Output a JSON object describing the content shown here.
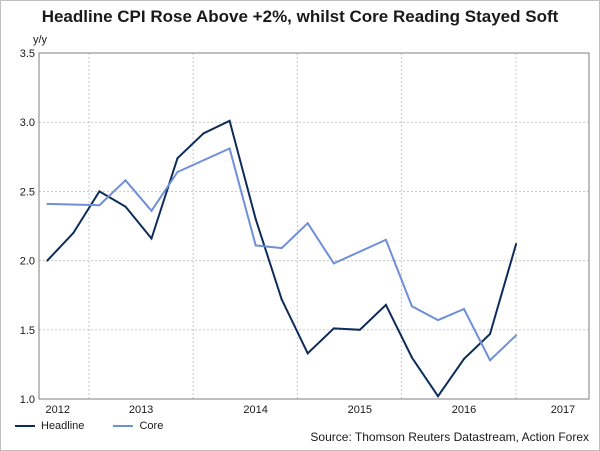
{
  "chart_data": {
    "type": "line",
    "title": "Headline CPI Rose Above +2%, whilst Core Reading Stayed Soft",
    "ylabel": "y/y",
    "xlabel": "",
    "ylim": [
      1.0,
      3.5
    ],
    "yticks": [
      1.0,
      1.5,
      2.0,
      2.5,
      3.0,
      3.5
    ],
    "ytick_labels": [
      "1.0",
      "1.5",
      "2.0",
      "2.5",
      "3.0",
      "3.5"
    ],
    "xlim": [
      2011.92,
      2017.2
    ],
    "xticks": [
      {
        "label": "2012",
        "pos": 2012.1
      },
      {
        "label": "2013",
        "pos": 2012.9
      },
      {
        "label": "2014",
        "pos": 2014.0
      },
      {
        "label": "2015",
        "pos": 2015.0
      },
      {
        "label": "2016",
        "pos": 2016.0
      },
      {
        "label": "2017",
        "pos": 2016.95
      }
    ],
    "gridlines_x": [
      2012.4,
      2013.4,
      2014.4,
      2015.4,
      2016.5
    ],
    "series": [
      {
        "name": "Headline",
        "color": "#0d2c5a",
        "points": [
          {
            "x": 2012.0,
            "y": 2.0
          },
          {
            "x": 2012.25,
            "y": 2.2
          },
          {
            "x": 2012.5,
            "y": 2.5
          },
          {
            "x": 2012.75,
            "y": 2.39
          },
          {
            "x": 2013.0,
            "y": 2.16
          },
          {
            "x": 2013.25,
            "y": 2.74
          },
          {
            "x": 2013.5,
            "y": 2.92
          },
          {
            "x": 2013.75,
            "y": 3.01
          },
          {
            "x": 2014.0,
            "y": 2.3
          },
          {
            "x": 2014.25,
            "y": 1.72
          },
          {
            "x": 2014.5,
            "y": 1.33
          },
          {
            "x": 2014.75,
            "y": 1.51
          },
          {
            "x": 2015.0,
            "y": 1.5
          },
          {
            "x": 2015.25,
            "y": 1.68
          },
          {
            "x": 2015.5,
            "y": 1.3
          },
          {
            "x": 2015.75,
            "y": 1.02
          },
          {
            "x": 2016.0,
            "y": 1.29
          },
          {
            "x": 2016.25,
            "y": 1.47
          },
          {
            "x": 2016.5,
            "y": 2.12
          }
        ]
      },
      {
        "name": "Core",
        "color": "#6f8fd8",
        "points": [
          {
            "x": 2012.0,
            "y": 2.41
          },
          {
            "x": 2012.5,
            "y": 2.4
          },
          {
            "x": 2012.75,
            "y": 2.58
          },
          {
            "x": 2013.0,
            "y": 2.36
          },
          {
            "x": 2013.25,
            "y": 2.64
          },
          {
            "x": 2013.75,
            "y": 2.81
          },
          {
            "x": 2014.0,
            "y": 2.11
          },
          {
            "x": 2014.25,
            "y": 2.09
          },
          {
            "x": 2014.5,
            "y": 2.27
          },
          {
            "x": 2014.75,
            "y": 1.98
          },
          {
            "x": 2015.25,
            "y": 2.15
          },
          {
            "x": 2015.5,
            "y": 1.67
          },
          {
            "x": 2015.75,
            "y": 1.57
          },
          {
            "x": 2016.0,
            "y": 1.65
          },
          {
            "x": 2016.25,
            "y": 1.28
          },
          {
            "x": 2016.5,
            "y": 1.46
          }
        ]
      }
    ],
    "legend": "bottom-left",
    "source": "Source: Thomson Reuters Datastream, Action Forex"
  }
}
